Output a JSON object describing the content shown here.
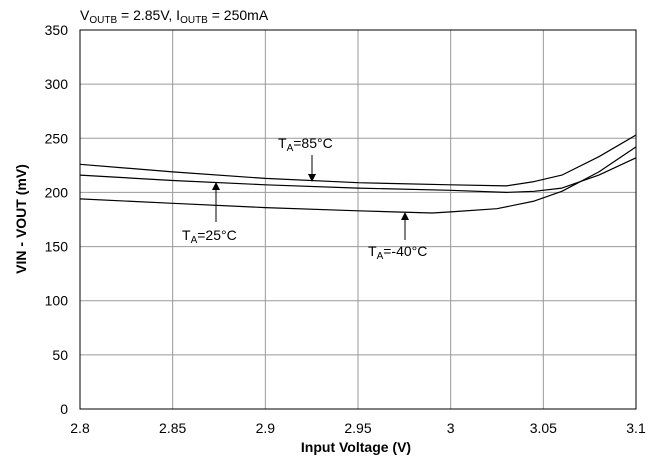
{
  "chart_data": {
    "type": "line",
    "title": {
      "prefix1": "V",
      "sub1": "OUTB",
      "mid": " = 2.85V, I",
      "sub2": "OUTB",
      "suffix": " = 250mA"
    },
    "xlabel": "Input Voltage (V)",
    "ylabel": "VIN - VOUT (mV)",
    "xlim": [
      2.8,
      3.1
    ],
    "ylim": [
      0,
      350
    ],
    "xticks": [
      2.8,
      2.85,
      2.9,
      2.95,
      3.0,
      3.05,
      3.1
    ],
    "xtick_labels": [
      "2.8",
      "2.85",
      "2.9",
      "2.95",
      "3",
      "3.05",
      "3.1"
    ],
    "yticks": [
      0,
      50,
      100,
      150,
      200,
      250,
      300,
      350
    ],
    "ytick_labels": [
      "0",
      "50",
      "100",
      "150",
      "200",
      "250",
      "300",
      "350"
    ],
    "grid": true,
    "series": [
      {
        "x": [
          2.8,
          2.85,
          2.9,
          2.95,
          3.0,
          3.03,
          3.045,
          3.06,
          3.08,
          3.1
        ],
        "y": [
          226,
          219,
          213,
          209,
          207,
          206,
          210,
          216,
          233,
          253
        ]
      },
      {
        "x": [
          2.8,
          2.85,
          2.9,
          2.95,
          3.0,
          3.03,
          3.045,
          3.06,
          3.08,
          3.1
        ],
        "y": [
          216,
          211,
          207,
          204,
          202,
          200,
          201,
          204,
          216,
          232
        ]
      },
      {
        "x": [
          2.8,
          2.85,
          2.9,
          2.95,
          2.99,
          3.0,
          3.025,
          3.045,
          3.06,
          3.08,
          3.1
        ],
        "y": [
          194,
          190,
          186,
          183,
          181,
          182,
          185,
          192,
          201,
          219,
          242
        ]
      }
    ],
    "annotations": [
      {
        "pre": "T",
        "sub": "A",
        "post": "=85°C"
      },
      {
        "pre": "T",
        "sub": "A",
        "post": "=25°C"
      },
      {
        "pre": "T",
        "sub": "A",
        "post": "=-40°C"
      }
    ]
  }
}
